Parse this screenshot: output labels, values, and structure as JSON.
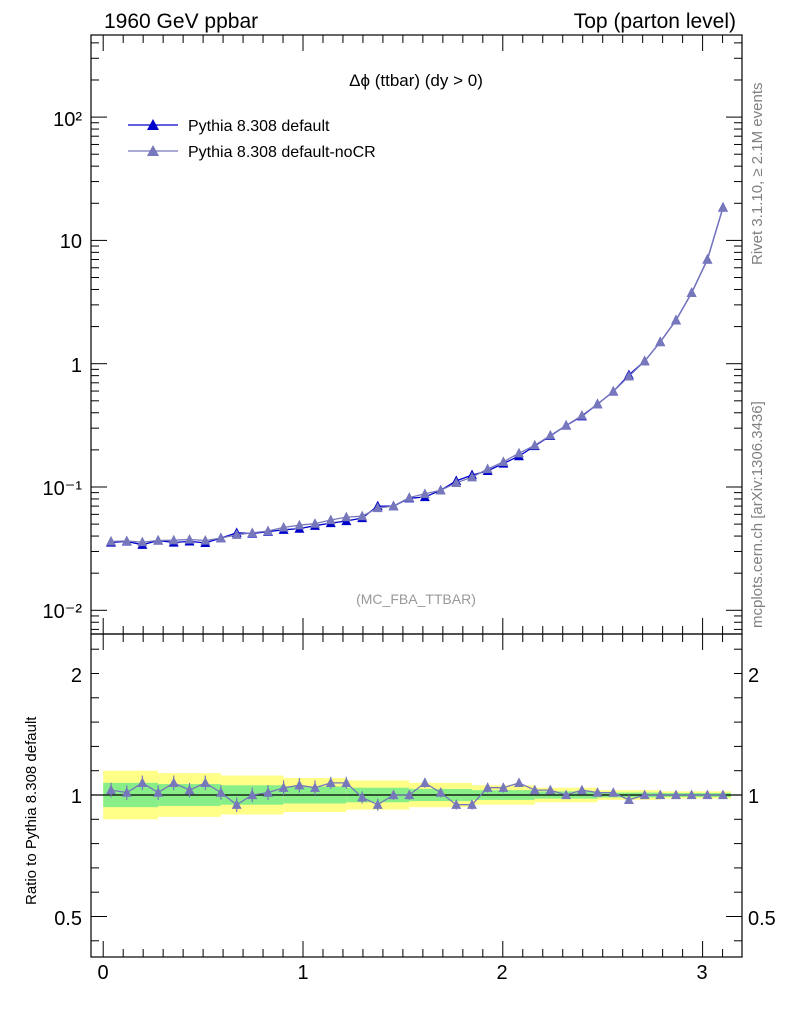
{
  "header": {
    "left": "1960 GeV ppbar",
    "right": "Top (parton level)"
  },
  "side_labels": {
    "upper": "Rivet 3.1.10, ≥ 2.1M events",
    "lower": "mcplots.cern.ch [arXiv:1306.3436]"
  },
  "chart_data": [
    {
      "type": "line",
      "title": "Δϕ (ttbar) (dy > 0)",
      "watermark": "(MC_FBA_TTBAR)",
      "xlim": [
        -0.06,
        3.22
      ],
      "ylim": [
        0.007,
        500
      ],
      "yscale": "log",
      "ytick_labels": [
        "10⁻²",
        "10⁻¹",
        "1",
        "10",
        "10²"
      ],
      "legend_position": "top-left",
      "series": [
        {
          "name": "Pythia 8.308 default",
          "color": "#0000cc",
          "marker": "triangle-filled",
          "x": [
            0.039,
            0.118,
            0.196,
            0.275,
            0.353,
            0.432,
            0.511,
            0.589,
            0.668,
            0.746,
            0.825,
            0.903,
            0.982,
            1.06,
            1.139,
            1.217,
            1.296,
            1.374,
            1.453,
            1.532,
            1.61,
            1.689,
            1.767,
            1.846,
            1.924,
            2.003,
            2.081,
            2.16,
            2.238,
            2.317,
            2.396,
            2.474,
            2.553,
            2.631,
            2.71,
            2.788,
            2.867,
            2.945,
            3.024,
            3.102
          ],
          "y": [
            0.0355,
            0.0362,
            0.034,
            0.0368,
            0.0355,
            0.0362,
            0.0352,
            0.0385,
            0.0425,
            0.042,
            0.0435,
            0.045,
            0.046,
            0.0485,
            0.051,
            0.053,
            0.056,
            0.07,
            0.07,
            0.081,
            0.083,
            0.094,
            0.112,
            0.125,
            0.135,
            0.155,
            0.178,
            0.215,
            0.26,
            0.315,
            0.375,
            0.47,
            0.595,
            0.81,
            1.05,
            1.5,
            2.25,
            3.75,
            7.0,
            18.5
          ]
        },
        {
          "name": "Pythia 8.308 default-noCR",
          "color": "#7777bb",
          "marker": "triangle-filled",
          "x": [
            0.039,
            0.118,
            0.196,
            0.275,
            0.353,
            0.432,
            0.511,
            0.589,
            0.668,
            0.746,
            0.825,
            0.903,
            0.982,
            1.06,
            1.139,
            1.217,
            1.296,
            1.374,
            1.453,
            1.532,
            1.61,
            1.689,
            1.767,
            1.846,
            1.924,
            2.003,
            2.081,
            2.16,
            2.238,
            2.317,
            2.396,
            2.474,
            2.553,
            2.631,
            2.71,
            2.788,
            2.867,
            2.945,
            3.024,
            3.102
          ],
          "y": [
            0.0362,
            0.0365,
            0.0357,
            0.0368,
            0.037,
            0.0375,
            0.0368,
            0.0385,
            0.041,
            0.0425,
            0.044,
            0.047,
            0.049,
            0.0505,
            0.054,
            0.057,
            0.058,
            0.0675,
            0.07,
            0.082,
            0.088,
            0.094,
            0.108,
            0.12,
            0.14,
            0.16,
            0.188,
            0.218,
            0.262,
            0.315,
            0.38,
            0.47,
            0.595,
            0.79,
            1.05,
            1.5,
            2.25,
            3.75,
            7.0,
            18.5
          ]
        }
      ]
    },
    {
      "type": "line",
      "ylabel": "Ratio to Pythia 8.308 default",
      "xlim": [
        -0.06,
        3.22
      ],
      "ylim": [
        0.3,
        2.3
      ],
      "xtick_labels": [
        "0",
        "1",
        "2",
        "3"
      ],
      "ytick_labels": [
        "0.5",
        "1",
        "2"
      ],
      "bands": {
        "green_color": "#88ee88",
        "yellow_color": "#ffff88",
        "x_edges": [
          0.0,
          0.275,
          0.589,
          0.903,
          1.217,
          1.532,
          1.846,
          2.16,
          2.474,
          2.788,
          3.142
        ],
        "green_half_width": [
          0.05,
          0.045,
          0.04,
          0.035,
          0.03,
          0.025,
          0.02,
          0.015,
          0.01,
          0.008
        ],
        "yellow_half_width": [
          0.1,
          0.09,
          0.08,
          0.07,
          0.06,
          0.05,
          0.04,
          0.03,
          0.02,
          0.015
        ]
      },
      "series": [
        {
          "name": "Pythia 8.308 default-noCR",
          "color": "#7777bb",
          "marker": "triangle-filled",
          "x": [
            0.039,
            0.118,
            0.196,
            0.275,
            0.353,
            0.432,
            0.511,
            0.589,
            0.668,
            0.746,
            0.825,
            0.903,
            0.982,
            1.06,
            1.139,
            1.217,
            1.296,
            1.374,
            1.453,
            1.532,
            1.61,
            1.689,
            1.767,
            1.846,
            1.924,
            2.003,
            2.081,
            2.16,
            2.238,
            2.317,
            2.396,
            2.474,
            2.553,
            2.631,
            2.71,
            2.788,
            2.867,
            2.945,
            3.024,
            3.102
          ],
          "y": [
            1.02,
            1.01,
            1.05,
            1.01,
            1.05,
            1.02,
            1.05,
            1.01,
            0.96,
            1.0,
            1.01,
            1.03,
            1.04,
            1.03,
            1.05,
            1.05,
            0.99,
            0.96,
            1.0,
            1.0,
            1.05,
            1.01,
            0.96,
            0.96,
            1.03,
            1.03,
            1.05,
            1.02,
            1.02,
            1.0,
            1.02,
            1.01,
            1.01,
            0.98,
            1.0,
            1.0,
            1.0,
            1.0,
            1.0,
            1.0
          ],
          "err": [
            0.03,
            0.03,
            0.03,
            0.03,
            0.03,
            0.03,
            0.03,
            0.03,
            0.03,
            0.03,
            0.03,
            0.03,
            0.03,
            0.03,
            0.025,
            0.025,
            0.025,
            0.025,
            0.02,
            0.02,
            0.02,
            0.02,
            0.02,
            0.02,
            0.02,
            0.02,
            0.015,
            0.015,
            0.015,
            0.012,
            0.012,
            0.01,
            0.01,
            0.01,
            0.008,
            0.008,
            0.006,
            0.005,
            0.005,
            0.004
          ]
        }
      ]
    }
  ]
}
